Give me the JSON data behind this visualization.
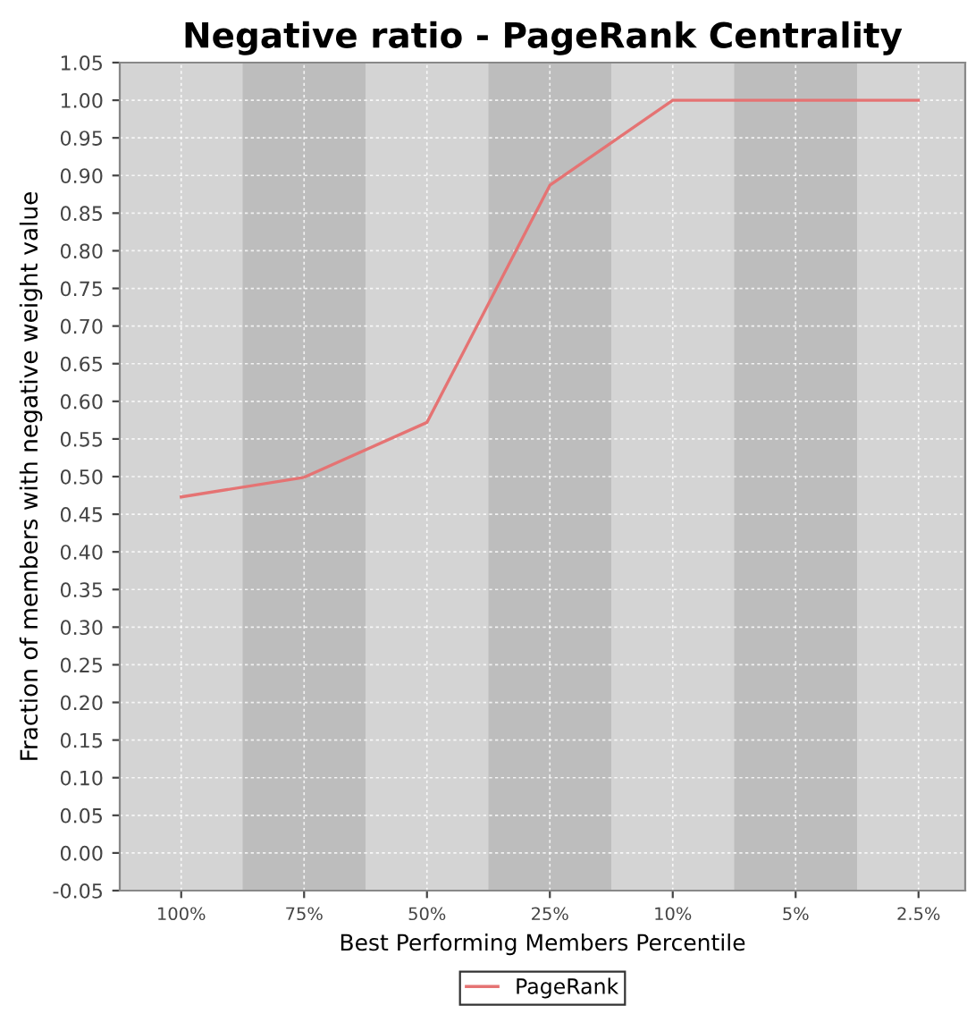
{
  "chart_data": {
    "type": "line",
    "title": "Negative ratio - PageRank Centrality",
    "xlabel": "Best Performing Members Percentile",
    "ylabel": "Fraction of members with negative weight value",
    "categories": [
      "100%",
      "75%",
      "50%",
      "25%",
      "10%",
      "5%",
      "2.5%"
    ],
    "series": [
      {
        "name": "PageRank",
        "color": "#e57373",
        "values": [
          0.473,
          0.499,
          0.572,
          0.887,
          1.0,
          1.0,
          1.0
        ]
      }
    ],
    "ylim": [
      -0.05,
      1.05
    ],
    "yticks": [
      {
        "value": -0.05,
        "label": "-0.05"
      },
      {
        "value": 0,
        "label": "0.00"
      },
      {
        "value": 0.05,
        "label": "0.05"
      },
      {
        "value": 0.1,
        "label": "0.10"
      },
      {
        "value": 0.15,
        "label": "0.15"
      },
      {
        "value": 0.2,
        "label": "0.20"
      },
      {
        "value": 0.25,
        "label": "0.25"
      },
      {
        "value": 0.3,
        "label": "0.30"
      },
      {
        "value": 0.35,
        "label": "0.35"
      },
      {
        "value": 0.4,
        "label": "0.40"
      },
      {
        "value": 0.45,
        "label": "0.45"
      },
      {
        "value": 0.5,
        "label": "0.50"
      },
      {
        "value": 0.55,
        "label": "0.55"
      },
      {
        "value": 0.6,
        "label": "0.60"
      },
      {
        "value": 0.65,
        "label": "0.65"
      },
      {
        "value": 0.7,
        "label": "0.70"
      },
      {
        "value": 0.75,
        "label": "0.75"
      },
      {
        "value": 0.8,
        "label": "0.80"
      },
      {
        "value": 0.85,
        "label": "0.85"
      },
      {
        "value": 0.9,
        "label": "0.90"
      },
      {
        "value": 0.95,
        "label": "0.95"
      },
      {
        "value": 1.0,
        "label": "1.00"
      },
      {
        "value": 1.05,
        "label": "1.05"
      }
    ],
    "grid": true,
    "legend": "bottom",
    "marker": "none",
    "line_style": "solid"
  }
}
